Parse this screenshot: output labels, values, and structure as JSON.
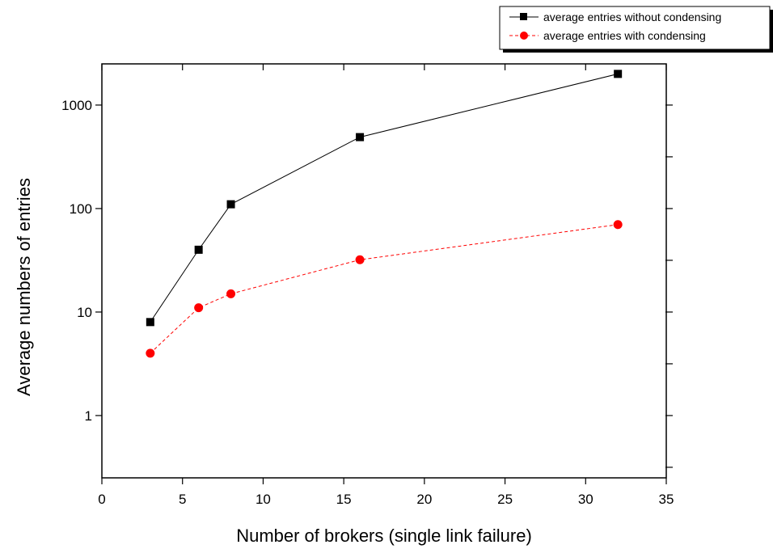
{
  "chart_data": {
    "type": "line",
    "title": "",
    "xlabel": "Number of brokers (single link failure)",
    "ylabel": "Average numbers of entries",
    "xlim": [
      0,
      35
    ],
    "ylim": [
      0.25,
      2500
    ],
    "yscale": "log",
    "grid": false,
    "legend_position": "top-right (outside plot)",
    "xticks": [
      0,
      5,
      10,
      15,
      20,
      25,
      30,
      35
    ],
    "yticks": [
      1,
      10,
      100,
      1000
    ],
    "xtick_labels": [
      "0",
      "5",
      "10",
      "15",
      "20",
      "25",
      "30",
      "35"
    ],
    "ytick_labels": [
      "1",
      "10",
      "100",
      "1000"
    ],
    "x": [
      3,
      6,
      8,
      16,
      32
    ],
    "series": [
      {
        "name": "average entries without condensing",
        "values": [
          8,
          40,
          110,
          490,
          2000
        ],
        "color": "#000000",
        "marker": "square",
        "line_style": "solid"
      },
      {
        "name": "average entries with condensing",
        "values": [
          4,
          11,
          15,
          32,
          70
        ],
        "color": "#ff0000",
        "marker": "circle",
        "line_style": "dashed"
      }
    ]
  }
}
